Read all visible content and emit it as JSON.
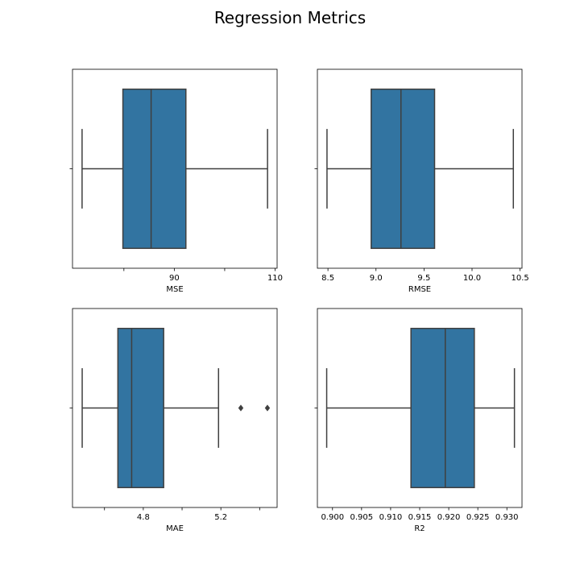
{
  "figure": {
    "title": "Regression Metrics"
  },
  "colors": {
    "box_fill": "#3274a1",
    "line": "#3f3f3f",
    "axis": "#000000"
  },
  "chart_data": [
    {
      "type": "box",
      "orientation": "horizontal",
      "xlabel": "MSE",
      "ticks": [
        80,
        90,
        100,
        110
      ],
      "tick_labels": [
        "",
        "90",
        "",
        "110"
      ],
      "xlim": [
        69.8,
        110.4
      ],
      "whisker_low": 71.7,
      "q1": 79.8,
      "median": 85.4,
      "q3": 92.3,
      "whisker_high": 108.5,
      "outliers": []
    },
    {
      "type": "box",
      "orientation": "horizontal",
      "xlabel": "RMSE",
      "ticks": [
        8.5,
        9.0,
        9.5,
        10.0,
        10.5
      ],
      "tick_labels": [
        "8.5",
        "9.0",
        "9.5",
        "10.0",
        "10.5"
      ],
      "xlim": [
        8.39,
        10.52
      ],
      "whisker_low": 8.49,
      "q1": 8.95,
      "median": 9.26,
      "q3": 9.61,
      "whisker_high": 10.43,
      "outliers": []
    },
    {
      "type": "box",
      "orientation": "horizontal",
      "xlabel": "MAE",
      "ticks": [
        4.6,
        4.8,
        5.0,
        5.2,
        5.4
      ],
      "tick_labels": [
        "",
        "4.8",
        "",
        "5.2",
        ""
      ],
      "xlim": [
        4.435,
        5.49
      ],
      "whisker_low": 4.485,
      "q1": 4.669,
      "median": 4.74,
      "q3": 4.905,
      "whisker_high": 5.188,
      "outliers": [
        5.303,
        5.44
      ]
    },
    {
      "type": "box",
      "orientation": "horizontal",
      "xlabel": "R2",
      "ticks": [
        0.9,
        0.905,
        0.91,
        0.915,
        0.92,
        0.925,
        0.93
      ],
      "tick_labels": [
        "0.900",
        "0.905",
        "0.910",
        "0.915",
        "0.920",
        "0.925",
        "0.930"
      ],
      "xlim": [
        0.8974,
        0.9326
      ],
      "whisker_low": 0.899,
      "q1": 0.9135,
      "median": 0.9194,
      "q3": 0.9244,
      "whisker_high": 0.9313,
      "outliers": []
    }
  ]
}
